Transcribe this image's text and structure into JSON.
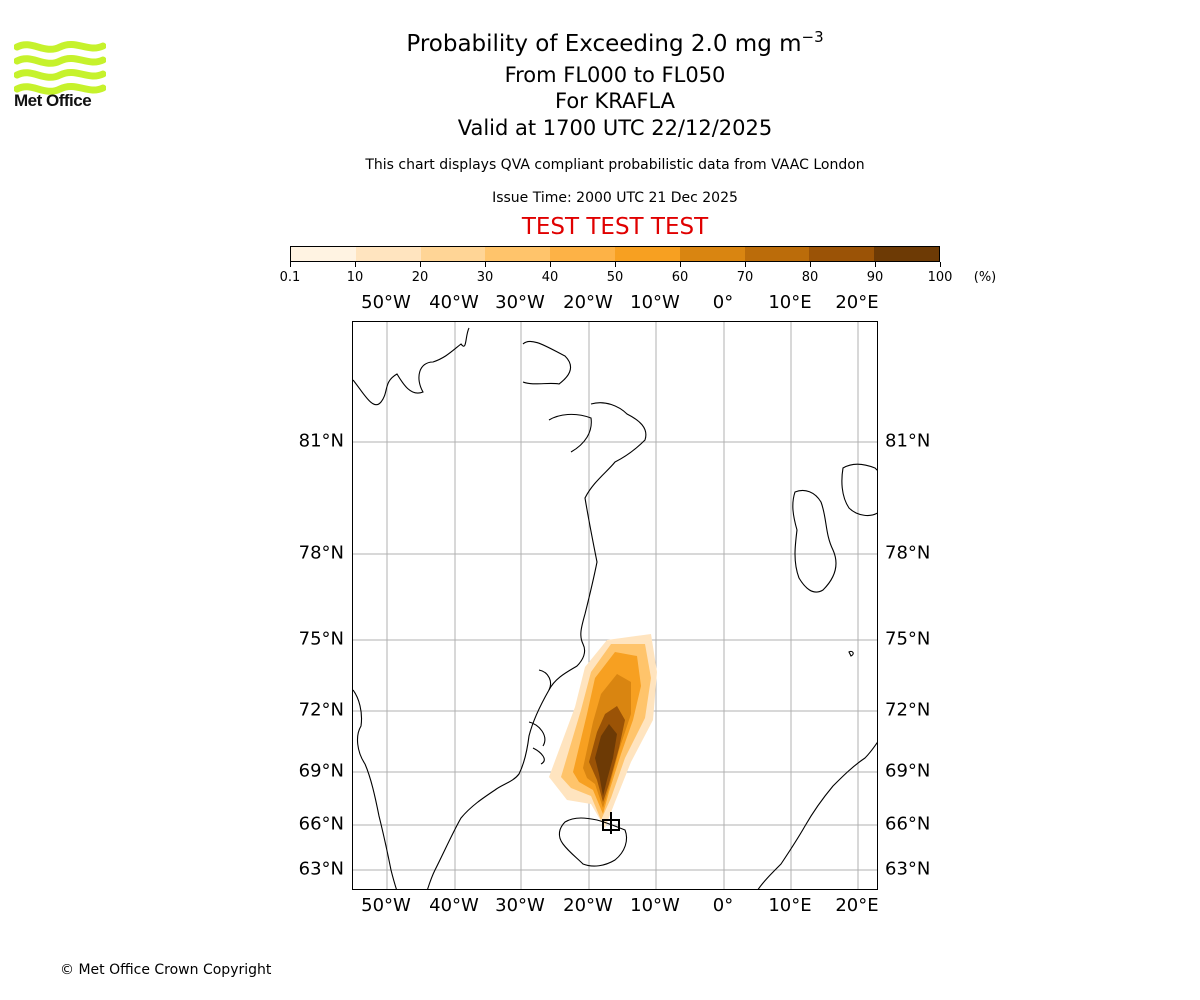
{
  "header": {
    "title_main": "Probability of Exceeding 2.0 mg m",
    "title_exponent": "−3",
    "level_range": "From FL000 to FL050",
    "volcano": "For KRAFLA",
    "valid_time": "Valid at 1700 UTC 22/12/2025",
    "description": "This chart displays QVA compliant probabilistic data from VAAC London",
    "issue_time": "Issue Time: 2000 UTC 21 Dec 2025",
    "test_banner": "TEST TEST TEST"
  },
  "logo": {
    "text": "Met Office",
    "color": "#c6f22c"
  },
  "colorbar": {
    "ticks": [
      "0.1",
      "10",
      "20",
      "30",
      "40",
      "50",
      "60",
      "70",
      "80",
      "90",
      "100"
    ],
    "unit": "(%)",
    "colors": [
      "#fff3e2",
      "#ffe4bf",
      "#ffd596",
      "#ffc46b",
      "#fdb246",
      "#f7a021",
      "#d98511",
      "#bb6c0a",
      "#9b5306",
      "#6d3a05"
    ]
  },
  "map": {
    "lon_labels": [
      "50°W",
      "40°W",
      "30°W",
      "20°W",
      "10°W",
      "0°",
      "10°E",
      "20°E"
    ],
    "lat_labels": [
      "81°N",
      "78°N",
      "75°N",
      "72°N",
      "69°N",
      "66°N",
      "63°N"
    ],
    "volcano_marker": "KRAFLA"
  },
  "footer": {
    "copyright": "© Met Office Crown Copyright"
  }
}
